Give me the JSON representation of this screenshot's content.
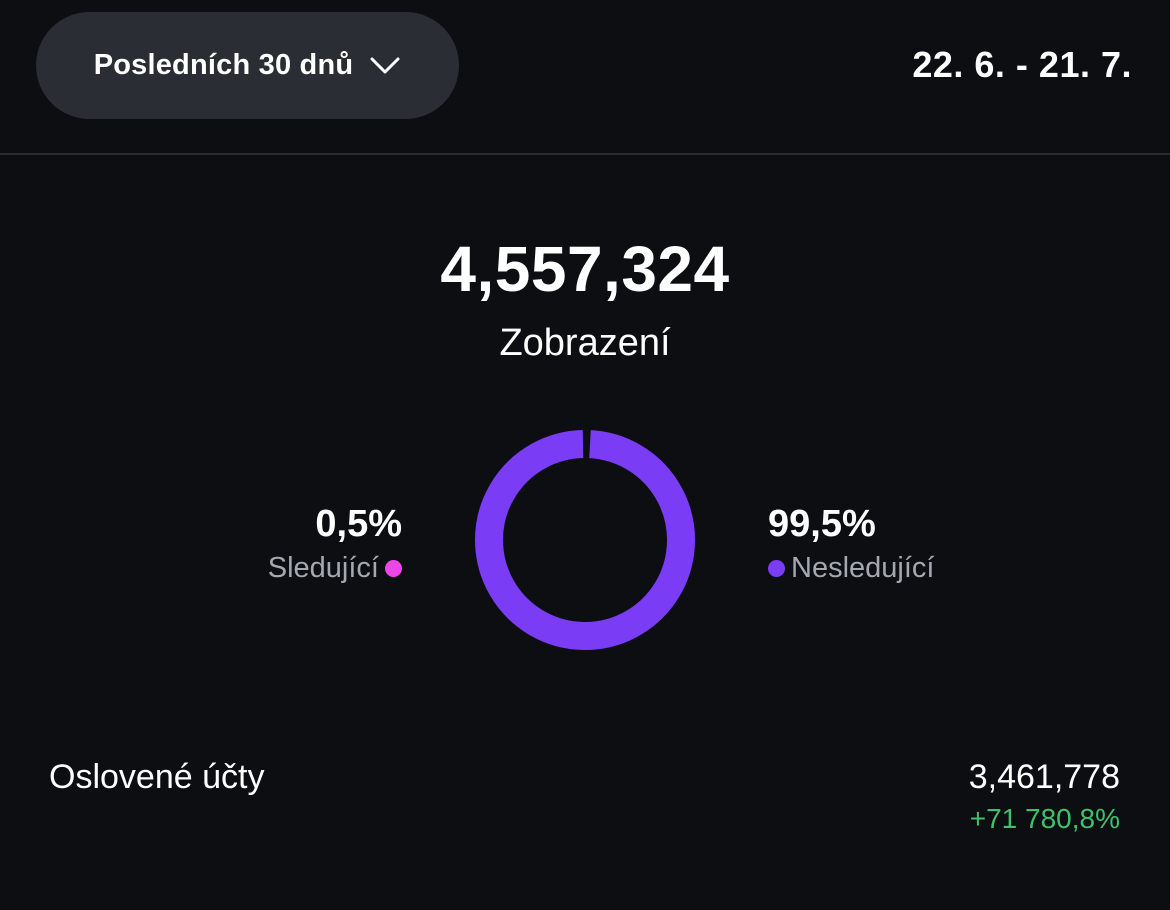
{
  "header": {
    "range_selector": "Posledních 30 dnů",
    "date_range": "22. 6. - 21. 7."
  },
  "summary": {
    "total_value": "4,557,324",
    "total_label": "Zobrazení"
  },
  "chart_data": {
    "type": "pie",
    "categories": [
      "Sledující",
      "Nesledující"
    ],
    "values": [
      0.5,
      99.5
    ],
    "value_labels": [
      "0,5%",
      "99,5%"
    ],
    "colors": [
      "#ee46e6",
      "#7b3cf6"
    ]
  },
  "breakdown": {
    "followers": {
      "percent": "0,5%",
      "label": "Sledující",
      "color": "#ee46e6"
    },
    "non_followers": {
      "percent": "99,5%",
      "label": "Nesledující",
      "color": "#7b3cf6"
    }
  },
  "reach": {
    "label": "Oslovené účty",
    "value": "3,461,778",
    "change": "+71 780,8%",
    "change_color": "#3ec16b"
  },
  "icons": {
    "range_chevron": "chevron-down-icon"
  }
}
